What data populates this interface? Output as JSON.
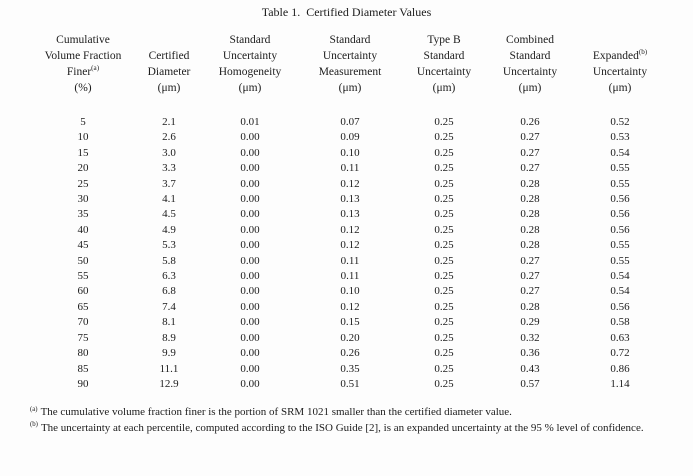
{
  "title": "Table 1.  Certified Diameter Values",
  "table": {
    "columns": [
      {
        "lines": [
          "Cumulative",
          "Volume Fraction",
          "Finer^(a)",
          "(%)"
        ]
      },
      {
        "lines": [
          "Certified",
          "Diameter",
          "(μm)"
        ]
      },
      {
        "lines": [
          "Standard",
          "Uncertainty",
          "Homogeneity",
          "(μm)"
        ]
      },
      {
        "lines": [
          "Standard",
          "Uncertainty",
          "Measurement",
          "(μm)"
        ]
      },
      {
        "lines": [
          "Type B",
          "Standard",
          "Uncertainty",
          "(μm)"
        ]
      },
      {
        "lines": [
          "Combined",
          "Standard",
          "Uncertainty",
          "(μm)"
        ]
      },
      {
        "lines": [
          "Expanded^(b)",
          "Uncertainty",
          "(μm)"
        ]
      }
    ],
    "rows": [
      [
        "5",
        "2.1",
        "0.01",
        "0.07",
        "0.25",
        "0.26",
        "0.52"
      ],
      [
        "10",
        "2.6",
        "0.00",
        "0.09",
        "0.25",
        "0.27",
        "0.53"
      ],
      [
        "15",
        "3.0",
        "0.00",
        "0.10",
        "0.25",
        "0.27",
        "0.54"
      ],
      [
        "20",
        "3.3",
        "0.00",
        "0.11",
        "0.25",
        "0.27",
        "0.55"
      ],
      [
        "25",
        "3.7",
        "0.00",
        "0.12",
        "0.25",
        "0.28",
        "0.55"
      ],
      [
        "30",
        "4.1",
        "0.00",
        "0.13",
        "0.25",
        "0.28",
        "0.56"
      ],
      [
        "35",
        "4.5",
        "0.00",
        "0.13",
        "0.25",
        "0.28",
        "0.56"
      ],
      [
        "40",
        "4.9",
        "0.00",
        "0.12",
        "0.25",
        "0.28",
        "0.56"
      ],
      [
        "45",
        "5.3",
        "0.00",
        "0.12",
        "0.25",
        "0.28",
        "0.55"
      ],
      [
        "50",
        "5.8",
        "0.00",
        "0.11",
        "0.25",
        "0.27",
        "0.55"
      ],
      [
        "55",
        "6.3",
        "0.00",
        "0.11",
        "0.25",
        "0.27",
        "0.54"
      ],
      [
        "60",
        "6.8",
        "0.00",
        "0.10",
        "0.25",
        "0.27",
        "0.54"
      ],
      [
        "65",
        "7.4",
        "0.00",
        "0.12",
        "0.25",
        "0.28",
        "0.56"
      ],
      [
        "70",
        "8.1",
        "0.00",
        "0.15",
        "0.25",
        "0.29",
        "0.58"
      ],
      [
        "75",
        "8.9",
        "0.00",
        "0.20",
        "0.25",
        "0.32",
        "0.63"
      ],
      [
        "80",
        "9.9",
        "0.00",
        "0.26",
        "0.25",
        "0.36",
        "0.72"
      ],
      [
        "85",
        "11.1",
        "0.00",
        "0.35",
        "0.25",
        "0.43",
        "0.86"
      ],
      [
        "90",
        "12.9",
        "0.00",
        "0.51",
        "0.25",
        "0.57",
        "1.14"
      ]
    ]
  },
  "footnotes": [
    {
      "marker": "(a)",
      "text": "The cumulative volume fraction finer is the portion of SRM 1021 smaller than the certified diameter value."
    },
    {
      "marker": "(b)",
      "text": "The uncertainty at each percentile, computed according to the ISO Guide [2], is an expanded uncertainty at the 95 % level of confidence."
    }
  ]
}
